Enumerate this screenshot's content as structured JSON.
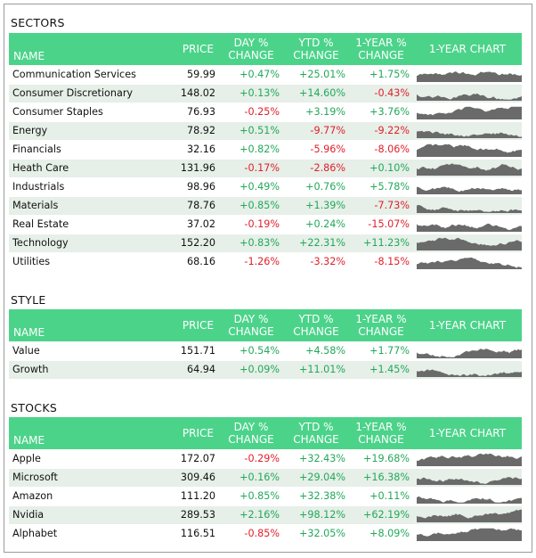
{
  "headers": {
    "name": "NAME",
    "price": "PRICE",
    "day": [
      "DAY %",
      "CHANGE"
    ],
    "ytd": [
      "YTD %",
      "CHANGE"
    ],
    "year": [
      "1-YEAR %",
      "CHANGE"
    ],
    "chart": "1-YEAR CHART"
  },
  "colors": {
    "header_bg": "#4cd38a",
    "positive": "#22a85a",
    "negative": "#e0202a",
    "spark": "#6a6a6a"
  },
  "sections": [
    {
      "title": "SECTORS",
      "rows": [
        {
          "name": "Communication Services",
          "price": "59.99",
          "day": "+0.47%",
          "ytd": "+25.01%",
          "year": "+1.75%"
        },
        {
          "name": "Consumer Discretionary",
          "price": "148.02",
          "day": "+0.13%",
          "ytd": "+14.60%",
          "year": "-0.43%"
        },
        {
          "name": "Consumer Staples",
          "price": "76.93",
          "day": "-0.25%",
          "ytd": "+3.19%",
          "year": "+3.76%"
        },
        {
          "name": "Energy",
          "price": "78.92",
          "day": "+0.51%",
          "ytd": "-9.77%",
          "year": "-9.22%"
        },
        {
          "name": "Financials",
          "price": "32.16",
          "day": "+0.82%",
          "ytd": "-5.96%",
          "year": "-8.06%"
        },
        {
          "name": "Heath Care",
          "price": "131.96",
          "day": "-0.17%",
          "ytd": "-2.86%",
          "year": "+0.10%"
        },
        {
          "name": "Industrials",
          "price": "98.96",
          "day": "+0.49%",
          "ytd": "+0.76%",
          "year": "+5.78%"
        },
        {
          "name": "Materials",
          "price": "78.76",
          "day": "+0.85%",
          "ytd": "+1.39%",
          "year": "-7.73%"
        },
        {
          "name": "Real Estate",
          "price": "37.02",
          "day": "-0.19%",
          "ytd": "+0.24%",
          "year": "-15.07%"
        },
        {
          "name": "Technology",
          "price": "152.20",
          "day": "+0.83%",
          "ytd": "+22.31%",
          "year": "+11.23%"
        },
        {
          "name": "Utilities",
          "price": "68.16",
          "day": "-1.26%",
          "ytd": "-3.32%",
          "year": "-8.15%"
        }
      ]
    },
    {
      "title": "STYLE",
      "rows": [
        {
          "name": "Value",
          "price": "151.71",
          "day": "+0.54%",
          "ytd": "+4.58%",
          "year": "+1.77%"
        },
        {
          "name": "Growth",
          "price": "64.94",
          "day": "+0.09%",
          "ytd": "+11.01%",
          "year": "+1.45%"
        }
      ]
    },
    {
      "title": "STOCKS",
      "rows": [
        {
          "name": "Apple",
          "price": "172.07",
          "day": "-0.29%",
          "ytd": "+32.43%",
          "year": "+19.68%"
        },
        {
          "name": "Microsoft",
          "price": "309.46",
          "day": "+0.16%",
          "ytd": "+29.04%",
          "year": "+16.38%"
        },
        {
          "name": "Amazon",
          "price": "111.20",
          "day": "+0.85%",
          "ytd": "+32.38%",
          "year": "+0.11%"
        },
        {
          "name": "Nvidia",
          "price": "289.53",
          "day": "+2.16%",
          "ytd": "+98.12%",
          "year": "+62.19%"
        },
        {
          "name": "Alphabet",
          "price": "116.51",
          "day": "-0.85%",
          "ytd": "+32.05%",
          "year": "+8.09%"
        }
      ]
    }
  ]
}
